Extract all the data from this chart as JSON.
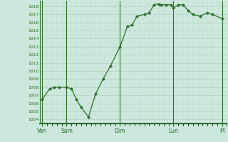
{
  "bg_color": "#cce8dc",
  "grid_color": "#aacebb",
  "line_color": "#2d6e2d",
  "marker_color": "#2d6e2d",
  "x_tick_labels": [
    "Ven",
    "Sam",
    "Dim",
    "Lun",
    "M"
  ],
  "x_tick_positions": [
    0,
    60,
    192,
    324,
    444
  ],
  "xlim": [
    -6,
    456
  ],
  "ylim": [
    1003.5,
    1018.7
  ],
  "yticks": [
    1004,
    1005,
    1006,
    1007,
    1008,
    1009,
    1010,
    1011,
    1012,
    1013,
    1014,
    1015,
    1016,
    1017,
    1018
  ],
  "vlines": [
    0,
    60,
    192,
    324,
    444
  ],
  "data_x": [
    0,
    18,
    30,
    42,
    60,
    72,
    84,
    96,
    114,
    132,
    150,
    168,
    192,
    210,
    222,
    234,
    252,
    264,
    276,
    288,
    294,
    306,
    318,
    324,
    336,
    348,
    360,
    372,
    390,
    408,
    420,
    444
  ],
  "data_y": [
    1006.5,
    1007.8,
    1008.0,
    1008.0,
    1008.0,
    1007.8,
    1006.5,
    1005.5,
    1004.3,
    1007.2,
    1009.0,
    1010.6,
    1013.0,
    1015.5,
    1015.7,
    1016.8,
    1017.0,
    1017.2,
    1018.2,
    1018.3,
    1018.2,
    1018.2,
    1018.2,
    1017.8,
    1018.2,
    1018.2,
    1017.5,
    1017.0,
    1016.8,
    1017.2,
    1017.0,
    1016.5
  ]
}
